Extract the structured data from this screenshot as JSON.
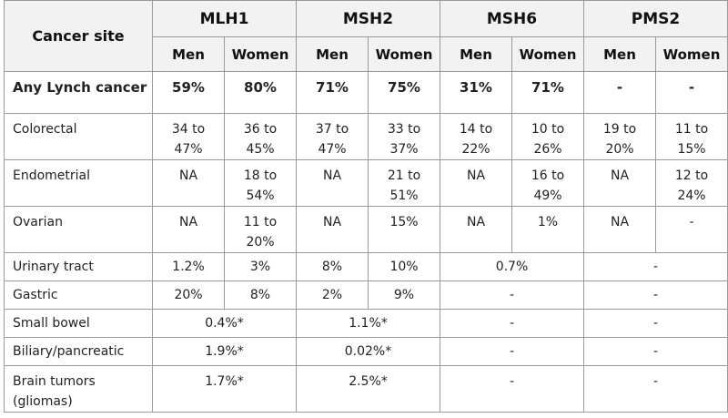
{
  "header": {
    "site_label": "Cancer site",
    "genes": [
      "MLH1",
      "MSH2",
      "MSH6",
      "PMS2"
    ],
    "men": "Men",
    "women": "Women"
  },
  "rows": {
    "any": {
      "label": "Any Lynch cancer",
      "mlh1_m": "59%",
      "mlh1_w": "80%",
      "msh2_m": "71%",
      "msh2_w": "75%",
      "msh6_m": "31%",
      "msh6_w": "71%",
      "pms2_m": "-",
      "pms2_w": "-"
    },
    "colorectal": {
      "label": "Colorectal",
      "mlh1_m": "34 to 47%",
      "mlh1_w": "36 to 45%",
      "msh2_m": "37 to 47%",
      "msh2_w": "33 to 37%",
      "msh6_m": "14 to 22%",
      "msh6_w": "10 to 26%",
      "pms2_m": "19 to 20%",
      "pms2_w": "11 to 15%"
    },
    "endometrial": {
      "label": "Endometrial",
      "mlh1_m": "NA",
      "mlh1_w": "18 to 54%",
      "msh2_m": "NA",
      "msh2_w": "21 to 51%",
      "msh6_m": "NA",
      "msh6_w": "16 to 49%",
      "pms2_m": "NA",
      "pms2_w": "12 to 24%"
    },
    "ovarian": {
      "label": "Ovarian",
      "mlh1_m": "NA",
      "mlh1_w": "11 to 20%",
      "msh2_m": "NA",
      "msh2_w": "15%",
      "msh6_m": "NA",
      "msh6_w": "1%",
      "pms2_m": "NA",
      "pms2_w": "-"
    },
    "urinary": {
      "label": "Urinary tract",
      "mlh1_m": "1.2%",
      "mlh1_w": "3%",
      "msh2_m": "8%",
      "msh2_w": "10%",
      "msh6": "0.7%",
      "pms2": "-"
    },
    "gastric": {
      "label": "Gastric",
      "mlh1_m": "20%",
      "mlh1_w": "8%",
      "msh2_m": "2%",
      "msh2_w": "9%",
      "msh6": "-",
      "pms2": "-"
    },
    "small_bowel": {
      "label": "Small bowel",
      "mlh1": "0.4%*",
      "msh2": "1.1%*",
      "msh6": "-",
      "pms2": "-"
    },
    "biliary": {
      "label": "Biliary/pancreatic",
      "mlh1": "1.9%*",
      "msh2": "0.02%*",
      "msh6": "-",
      "pms2": "-"
    },
    "brain": {
      "label": "Brain tumors (gliomas)",
      "mlh1": "1.7%*",
      "msh2": "2.5%*",
      "msh6": "-",
      "pms2": "-"
    }
  }
}
